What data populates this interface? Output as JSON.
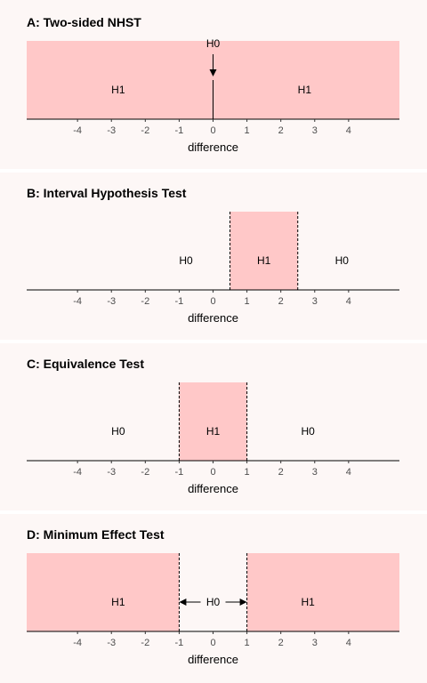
{
  "x_axis": {
    "label": "difference",
    "ticks": [
      -4,
      -3,
      -2,
      -1,
      0,
      1,
      2,
      3,
      4
    ],
    "range": [
      -5.5,
      5.5
    ]
  },
  "colors": {
    "region": "#ffc8c8",
    "background": "#fdf7f6"
  },
  "panels": [
    {
      "id": "a",
      "title": "A: Two-sided NHST",
      "regions": [
        [
          -5.5,
          5.5
        ]
      ],
      "boundaries": [],
      "point_line": 0,
      "h0_arrow": "down",
      "labels": [
        {
          "text": "H1",
          "x": -2.8,
          "level": "mid"
        },
        {
          "text": "H1",
          "x": 2.7,
          "level": "mid"
        },
        {
          "text": "H0",
          "x": 0,
          "level": "top"
        }
      ]
    },
    {
      "id": "b",
      "title": "B: Interval Hypothesis Test",
      "regions": [
        [
          0.5,
          2.5
        ]
      ],
      "boundaries": [
        0.5,
        2.5
      ],
      "labels": [
        {
          "text": "H0",
          "x": -0.8,
          "level": "mid"
        },
        {
          "text": "H1",
          "x": 1.5,
          "level": "mid"
        },
        {
          "text": "H0",
          "x": 3.8,
          "level": "mid"
        }
      ]
    },
    {
      "id": "c",
      "title": "C: Equivalence Test",
      "regions": [
        [
          -1,
          1
        ]
      ],
      "boundaries": [
        -1,
        1
      ],
      "labels": [
        {
          "text": "H0",
          "x": -2.8,
          "level": "mid"
        },
        {
          "text": "H1",
          "x": 0,
          "level": "mid"
        },
        {
          "text": "H0",
          "x": 2.8,
          "level": "mid"
        }
      ]
    },
    {
      "id": "d",
      "title": "D: Minimum Effect Test",
      "regions": [
        [
          -5.5,
          -1
        ],
        [
          1,
          5.5
        ]
      ],
      "boundaries": [
        -1,
        1
      ],
      "h0_arrows": true,
      "labels": [
        {
          "text": "H1",
          "x": -2.8,
          "level": "mid"
        },
        {
          "text": "H0",
          "x": 0,
          "level": "mid"
        },
        {
          "text": "H1",
          "x": 2.8,
          "level": "mid"
        }
      ]
    }
  ]
}
